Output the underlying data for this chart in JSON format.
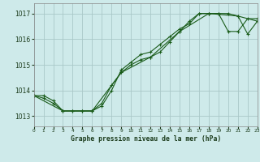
{
  "title": "Graphe pression niveau de la mer (hPa)",
  "background_color": "#ceeaea",
  "grid_color": "#aac8c8",
  "line_color": "#1a5c1a",
  "series": [
    {
      "x": [
        0,
        1,
        2,
        3,
        4,
        5,
        6,
        7,
        8,
        9,
        10,
        11,
        12,
        13,
        14,
        15,
        16,
        17,
        18,
        19,
        20,
        21,
        22,
        23
      ],
      "y": [
        1013.8,
        1013.7,
        1013.5,
        1013.2,
        1013.2,
        1013.2,
        1013.2,
        1013.5,
        1014.2,
        1014.7,
        1015.0,
        1015.2,
        1015.3,
        1015.5,
        1015.9,
        1016.3,
        1016.7,
        1017.0,
        1017.0,
        1017.0,
        1016.3,
        1016.3,
        1016.8,
        1016.8
      ]
    },
    {
      "x": [
        0,
        1,
        2,
        3,
        4,
        5,
        6,
        7,
        8,
        9,
        10,
        11,
        12,
        13,
        14,
        15,
        16,
        17,
        18,
        19,
        20,
        21,
        22,
        23
      ],
      "y": [
        1013.8,
        1013.8,
        1013.6,
        1013.2,
        1013.2,
        1013.2,
        1013.2,
        1013.4,
        1014.0,
        1014.8,
        1015.1,
        1015.4,
        1015.5,
        1015.8,
        1016.1,
        1016.4,
        1016.6,
        1017.0,
        1017.0,
        1017.0,
        1017.0,
        1016.9,
        1016.2,
        1016.7
      ]
    },
    {
      "x": [
        0,
        3,
        6,
        9,
        12,
        15,
        18,
        21,
        23
      ],
      "y": [
        1013.8,
        1013.2,
        1013.2,
        1014.7,
        1015.3,
        1016.3,
        1017.0,
        1016.9,
        1016.7
      ]
    }
  ],
  "yticks": [
    1013,
    1014,
    1015,
    1016,
    1017
  ],
  "xticks": [
    0,
    1,
    2,
    3,
    4,
    5,
    6,
    7,
    8,
    9,
    10,
    11,
    12,
    13,
    14,
    15,
    16,
    17,
    18,
    19,
    20,
    21,
    22,
    23
  ],
  "xlim": [
    0,
    23
  ],
  "ylim": [
    1012.6,
    1017.4
  ]
}
